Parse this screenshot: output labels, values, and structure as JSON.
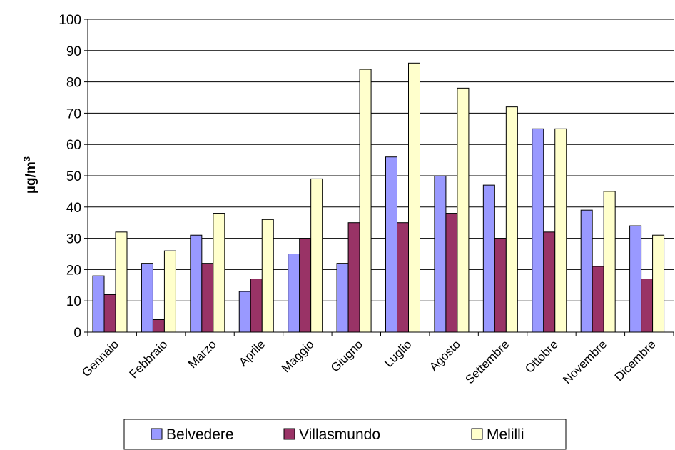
{
  "chart_data": {
    "type": "bar",
    "ylabel": "µg/m",
    "ylabel_superscript": "3",
    "ylim": [
      0,
      100
    ],
    "yticks": [
      0,
      10,
      20,
      30,
      40,
      50,
      60,
      70,
      80,
      90,
      100
    ],
    "grid": "horizontal",
    "legend_position": "bottom",
    "categories": [
      "Gennaio",
      "Febbraio",
      "Marzo",
      "Aprile",
      "Maggio",
      "Giugno",
      "Luglio",
      "Agosto",
      "Settembre",
      "Ottobre",
      "Novembre",
      "Dicembre"
    ],
    "series": [
      {
        "name": "Belvedere",
        "color": "#9999ff",
        "values": [
          18,
          22,
          31,
          13,
          25,
          22,
          56,
          50,
          47,
          65,
          39,
          34
        ]
      },
      {
        "name": "Villasmundo",
        "color": "#993366",
        "values": [
          12,
          4,
          22,
          17,
          30,
          35,
          35,
          38,
          30,
          32,
          21,
          17
        ]
      },
      {
        "name": "Melilli",
        "color": "#ffffcc",
        "values": [
          32,
          26,
          38,
          36,
          49,
          84,
          86,
          78,
          72,
          65,
          45,
          31
        ]
      }
    ]
  }
}
